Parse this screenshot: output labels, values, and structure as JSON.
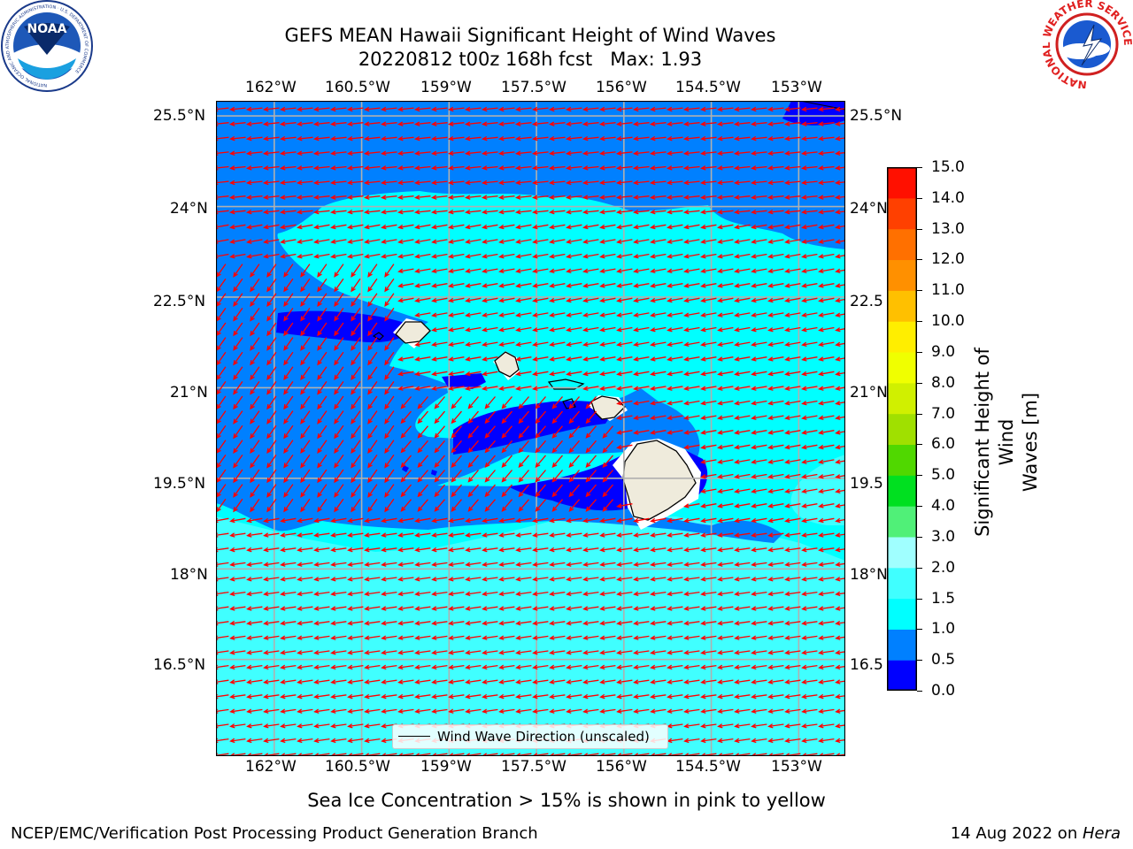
{
  "title": {
    "line1": "GEFS MEAN Hawaii Significant Height of Wind Waves",
    "line2": "20220812 t00z 168h fcst   Max: 1.93"
  },
  "logos": {
    "noaa": {
      "text": "NOAA",
      "ring_text": "NATIONAL OCEANIC AND ATMOSPHERIC ADMINISTRATION · U.S. DEPARTMENT OF COMMERCE"
    },
    "nws": {
      "ring_text": "NATIONAL WEATHER SERVICE"
    }
  },
  "map": {
    "lon_labels": [
      "162°W",
      "160.5°W",
      "159°W",
      "157.5°W",
      "156°W",
      "154.5°W",
      "153°W"
    ],
    "lat_labels_left": [
      "25.5°N",
      "24°N",
      "22.5°N",
      "21°N",
      "19.5°N",
      "18°N",
      "16.5°N"
    ],
    "lat_labels_right": [
      "25.5°N",
      "24°N",
      "22.5",
      "21°N",
      "19.5",
      "18°N",
      "16.5"
    ],
    "lon_values": [
      -162,
      -160.5,
      -159,
      -157.5,
      -156,
      -154.5,
      -153
    ],
    "lat_values": [
      25.5,
      24,
      22.5,
      21,
      19.5,
      18,
      16.5
    ],
    "extent": {
      "lon_min": -163,
      "lon_max": -152.2,
      "lat_min": 14.9,
      "lat_max": 25.75
    },
    "arrow_color": "#ff0000",
    "land_color": "#efebdc",
    "legend_label": "Wind Wave Direction (unscaled)"
  },
  "colorbar": {
    "label": "Significant Height of Wind Waves [m]",
    "label_line1": "Significant Height of Wind",
    "label_line2": "Waves [m]",
    "ticks": [
      "15.0",
      "14.0",
      "13.0",
      "12.0",
      "11.0",
      "10.0",
      "9.0",
      "8.0",
      "7.0",
      "6.0",
      "5.0",
      "4.0",
      "3.0",
      "2.0",
      "1.5",
      "1.0",
      "0.5",
      "0.0"
    ],
    "colors": [
      "#0000ff",
      "#0080ff",
      "#00ffff",
      "#40ffff",
      "#a0ffff",
      "#50f078",
      "#00e020",
      "#50d800",
      "#a0e000",
      "#d0f000",
      "#f0ff00",
      "#ffee00",
      "#ffc000",
      "#ff9000",
      "#ff7000",
      "#ff4000",
      "#ff1000"
    ]
  },
  "chart_data": {
    "type": "heatmap",
    "title": "GEFS MEAN Hawaii Significant Height of Wind Waves",
    "subtitle": "20220812 t00z 168h fcst   Max: 1.93",
    "variable": "Significant Height of Wind Waves [m]",
    "max_value": 1.93,
    "color_levels": [
      0.0,
      0.5,
      1.0,
      1.5,
      2.0,
      3.0,
      4.0,
      5.0,
      6.0,
      7.0,
      8.0,
      9.0,
      10.0,
      11.0,
      12.0,
      13.0,
      14.0,
      15.0
    ],
    "prevailing_direction": "from east-northeast (trade winds)",
    "grid": true,
    "legend": "bottom-center"
  },
  "note": "Sea Ice Concentration > 15% is shown in pink to yellow",
  "footer": {
    "left": "NCEP/EMC/Verification Post Processing Product Generation Branch",
    "right_prefix": "14 Aug 2022 on ",
    "right_host": "Hera"
  }
}
